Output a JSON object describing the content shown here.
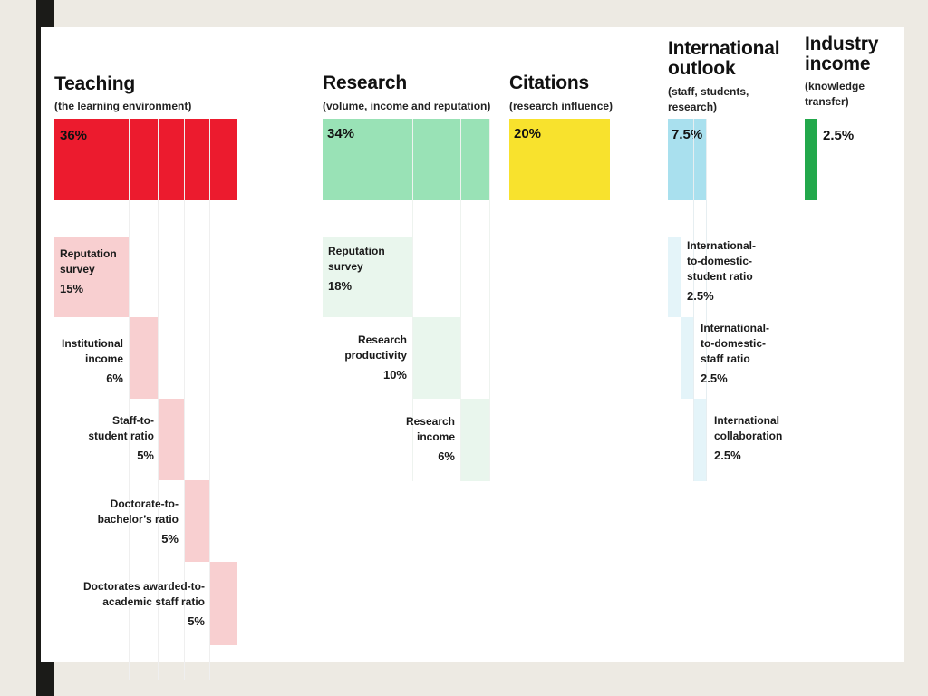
{
  "colors": {
    "teaching": "#ec1b2e",
    "teaching_light": "#f8cfd0",
    "research": "#99e2b6",
    "research_light": "#e9f6ed",
    "citations": "#f8e22d",
    "international": "#a9e0ee",
    "international_light": "#e4f4f9",
    "industry": "#22a84b"
  },
  "pillars": {
    "teaching": {
      "title": "Teaching",
      "subtitle": "(the learning environment)",
      "weight": "36%",
      "sub": [
        {
          "name": "Reputation survey",
          "line1": "Reputation",
          "line2": "survey",
          "weight": "15%"
        },
        {
          "name": "Institutional income",
          "line1": "Institutional",
          "line2": "income",
          "weight": "6%"
        },
        {
          "name": "Staff-to-student ratio",
          "line1": "Staff-to-",
          "line2": "student ratio",
          "weight": "5%"
        },
        {
          "name": "Doctorate-to-bachelor's ratio",
          "line1": "Doctorate-to-",
          "line2": "bachelor’s ratio",
          "weight": "5%"
        },
        {
          "name": "Doctorates awarded-to-academic staff ratio",
          "line1": "Doctorates awarded-to-",
          "line2": "academic staff ratio",
          "weight": "5%"
        }
      ]
    },
    "research": {
      "title": "Research",
      "subtitle": "(volume, income and reputation)",
      "weight": "34%",
      "sub": [
        {
          "name": "Reputation survey",
          "line1": "Reputation",
          "line2": "survey",
          "weight": "18%"
        },
        {
          "name": "Research productivity",
          "line1": "Research",
          "line2": "productivity",
          "weight": "10%"
        },
        {
          "name": "Research income",
          "line1": "Research",
          "line2": "income",
          "weight": "6%"
        }
      ]
    },
    "citations": {
      "title": "Citations",
      "subtitle": "(research influence)",
      "weight": "20%"
    },
    "international": {
      "title_line1": "International",
      "title_line2": "outlook",
      "subtitle_line1": "(staff, students,",
      "subtitle_line2": "research)",
      "weight": "7.5%",
      "sub": [
        {
          "name": "International-to-domestic-student ratio",
          "line1": "International-",
          "line2": "to-domestic-",
          "line3": "student ratio",
          "weight": "2.5%"
        },
        {
          "name": "International-to-domestic-staff ratio",
          "line1": "International-",
          "line2": "to-domestic-",
          "line3": "staff ratio",
          "weight": "2.5%"
        },
        {
          "name": "International collaboration",
          "line1": "International",
          "line2": "collaboration",
          "weight": "2.5%"
        }
      ]
    },
    "industry": {
      "title_line1": "Industry",
      "title_line2": "income",
      "subtitle_line1": "(knowledge",
      "subtitle_line2": "transfer)",
      "weight": "2.5%"
    }
  }
}
